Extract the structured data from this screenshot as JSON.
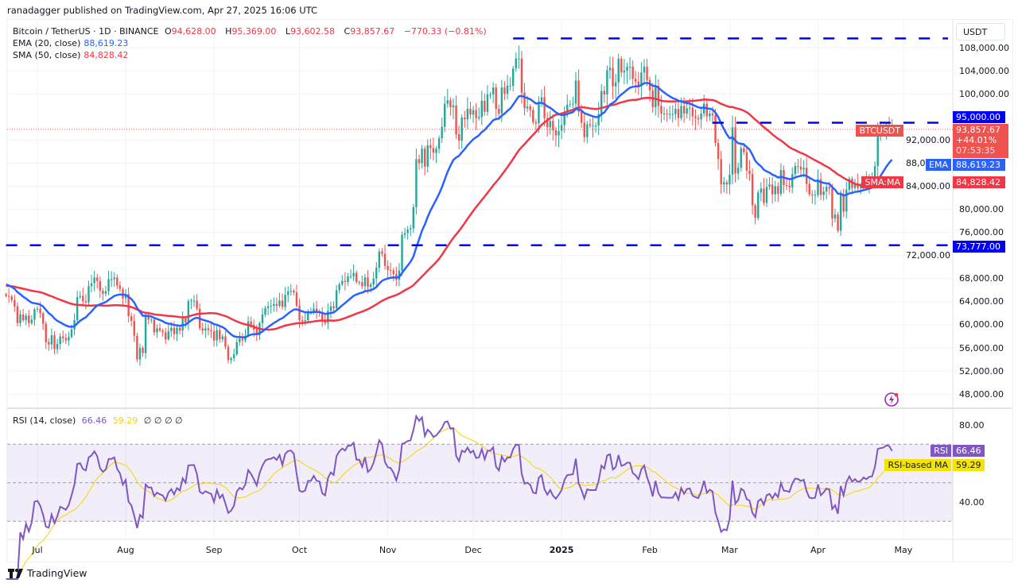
{
  "header": {
    "published": "ranadagger published on TradingView.com, Apr 27, 2025 16:06 UTC",
    "symbol": "Bitcoin / TetherUS · 1D · BINANCE",
    "o_label": "O",
    "o": "94,628.00",
    "h_label": "H",
    "h": "95,369.00",
    "l_label": "L",
    "l": "93,602.58",
    "c_label": "C",
    "c": "93,857.67",
    "change": "−770.33 (−0.81%)",
    "ema_label": "EMA (20, close)",
    "ema_value": "88,619.23",
    "sma_label": "SMA (50, close)",
    "sma_value": "84,828.42",
    "rsi_label": "RSI (14, close)",
    "rsi_value": "66.46",
    "rsi_ma_value": "59.29",
    "rsi_extra": "∅ ∅ ∅ ∅"
  },
  "currency_button": "USDT",
  "price_tags": {
    "resistance": "95,000.00",
    "support": "73,777.00",
    "symbol": "BTCUSDT",
    "last": "93,857.67",
    "pct": "+44.01%",
    "countdown": "07:53:35",
    "ema_name": "EMA",
    "ema": "88,619.23",
    "sma_name": "SMA:MA",
    "sma": "84,828.42",
    "rsi_name": "RSI",
    "rsi": "66.46",
    "rsi_ma_name": "RSI-based MA",
    "rsi_ma": "59.29"
  },
  "rsi_axis": [
    "80.00",
    "40.00"
  ],
  "brand": "TradingView",
  "colors": {
    "up": "#26a69a",
    "down": "#ef5350",
    "ema": "#2962ff",
    "sma": "#f23645",
    "rsi": "#7e57c2",
    "rsi_ma": "#f5d400",
    "level": "#0000ff"
  },
  "icons": {
    "alert": "lightning-icon",
    "logo": "tradingview-logo"
  },
  "chart_data": {
    "type": "candlestick",
    "symbol": "BTCUSDT",
    "interval": "1D",
    "start_date": "2024-06-20",
    "end_date": "2025-04-27",
    "y_unit": "USDT",
    "ylim": [
      45000,
      112000
    ],
    "y_ticks": [
      48000,
      52000,
      56000,
      60000,
      64000,
      68000,
      72000,
      76000,
      80000,
      84000,
      88000,
      92000,
      100000,
      104000,
      108000
    ],
    "x_ticks": [
      {
        "label": "Jul",
        "date": "2024-07-01"
      },
      {
        "label": "Aug",
        "date": "2024-08-01"
      },
      {
        "label": "Sep",
        "date": "2024-09-01"
      },
      {
        "label": "Oct",
        "date": "2024-10-01"
      },
      {
        "label": "Nov",
        "date": "2024-11-01"
      },
      {
        "label": "Dec",
        "date": "2024-12-01"
      },
      {
        "label": "2025",
        "date": "2025-01-01"
      },
      {
        "label": "Feb",
        "date": "2025-02-01"
      },
      {
        "label": "Mar",
        "date": "2025-03-01"
      },
      {
        "label": "Apr",
        "date": "2025-04-01"
      },
      {
        "label": "May",
        "date": "2025-05-01"
      }
    ],
    "grid": true,
    "levels": [
      {
        "value": 109600,
        "from": "2024-12-15"
      },
      {
        "value": 95000,
        "from": "2025-02-23"
      },
      {
        "value": 73777,
        "from": "2024-06-20"
      }
    ],
    "last_price": 93857.67,
    "closes_thousands": [
      65.0,
      64.9,
      64.3,
      63.2,
      60.3,
      61.8,
      60.8,
      61.6,
      60.3,
      60.9,
      62.7,
      62.8,
      62.0,
      60.2,
      57.0,
      56.6,
      58.2,
      55.8,
      56.7,
      58.0,
      57.7,
      57.3,
      57.9,
      59.2,
      60.8,
      64.8,
      65.0,
      64.1,
      63.9,
      66.7,
      67.2,
      68.2,
      67.6,
      65.9,
      65.4,
      65.8,
      67.9,
      67.9,
      68.2,
      66.8,
      66.2,
      64.6,
      65.3,
      61.5,
      60.7,
      58.1,
      54.0,
      56.0,
      55.1,
      61.7,
      60.9,
      60.9,
      58.7,
      59.4,
      59.0,
      58.7,
      57.5,
      58.9,
      59.5,
      58.4,
      59.5,
      59.0,
      61.2,
      60.4,
      64.1,
      64.2,
      64.2,
      62.8,
      59.4,
      59.0,
      59.4,
      59.1,
      58.9,
      57.3,
      59.1,
      57.5,
      58.0,
      56.2,
      53.9,
      54.2,
      54.9,
      57.0,
      57.6,
      57.3,
      58.1,
      60.6,
      60.0,
      59.2,
      58.2,
      60.3,
      61.8,
      62.9,
      63.2,
      63.3,
      63.6,
      63.3,
      64.2,
      63.1,
      65.2,
      65.8,
      65.9,
      65.6,
      63.3,
      60.8,
      60.6,
      60.8,
      62.1,
      62.1,
      62.8,
      62.2,
      62.1,
      60.6,
      60.3,
      62.4,
      63.2,
      62.9,
      66.0,
      67.0,
      67.6,
      67.4,
      68.4,
      68.4,
      69.0,
      67.4,
      67.4,
      66.7,
      68.2,
      66.6,
      67.0,
      68.0,
      69.9,
      72.7,
      72.3,
      70.2,
      69.5,
      69.4,
      68.8,
      67.8,
      69.4,
      75.6,
      75.9,
      76.5,
      76.7,
      80.4,
      88.7,
      88.0,
      90.5,
      87.4,
      91.1,
      90.6,
      89.8,
      90.5,
      92.3,
      94.3,
      98.3,
      98.9,
      97.7,
      98.0,
      93.0,
      91.9,
      95.9,
      95.6,
      97.4,
      96.4,
      97.2,
      95.8,
      96.0,
      98.8,
      96.9,
      99.9,
      99.9,
      101.1,
      97.4,
      96.6,
      101.1,
      100.0,
      101.4,
      101.4,
      104.4,
      106.1,
      106.1,
      100.2,
      97.5,
      97.8,
      97.2,
      95.1,
      94.9,
      98.7,
      99.4,
      95.8,
      94.2,
      95.3,
      93.7,
      92.8,
      93.6,
      94.6,
      96.9,
      98.1,
      98.2,
      98.3,
      102.3,
      96.9,
      95.0,
      92.5,
      94.7,
      94.5,
      94.5,
      94.5,
      96.5,
      100.5,
      99.9,
      104.1,
      104.5,
      101.3,
      102.0,
      106.1,
      103.7,
      104.0,
      104.7,
      104.7,
      102.6,
      102.1,
      101.3,
      103.7,
      104.7,
      102.4,
      100.6,
      97.7,
      101.4,
      97.9,
      96.6,
      96.6,
      96.5,
      96.5,
      96.5,
      97.4,
      95.8,
      97.9,
      96.6,
      97.5,
      97.6,
      96.1,
      95.8,
      95.6,
      96.6,
      98.3,
      96.1,
      96.6,
      96.3,
      91.5,
      88.7,
      84.3,
      84.7,
      84.3,
      86.0,
      94.2,
      86.2,
      87.2,
      90.6,
      89.9,
      86.7,
      86.1,
      80.7,
      78.5,
      82.9,
      83.6,
      81.1,
      83.9,
      84.3,
      82.6,
      84.0,
      82.7,
      86.8,
      84.2,
      84.1,
      83.8,
      86.1,
      87.5,
      87.4,
      86.9,
      87.2,
      84.4,
      82.6,
      82.4,
      82.5,
      85.2,
      82.5,
      83.1,
      83.9,
      83.6,
      78.4,
      79.1,
      76.3,
      82.6,
      79.6,
      83.4,
      85.3,
      83.7,
      84.5,
      83.7,
      84.0,
      84.9,
      84.5,
      85.1,
      85.2,
      87.5,
      93.4,
      93.7,
      93.9,
      94.7,
      94.6,
      93.86
    ],
    "indicators": [
      {
        "name": "EMA (20, close)",
        "last": 88619.23
      },
      {
        "name": "SMA (50, close)",
        "last": 84828.42
      }
    ],
    "rsi": {
      "period": 14,
      "last": 66.46,
      "ma_last": 59.29,
      "bands": [
        70,
        50,
        30
      ],
      "ylim": [
        20,
        95
      ]
    }
  }
}
